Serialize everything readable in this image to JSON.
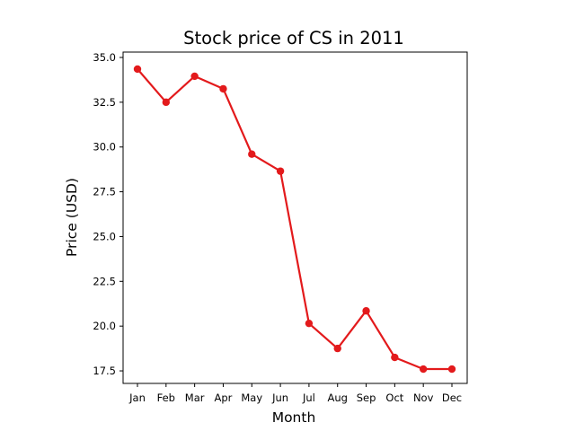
{
  "chart_data": {
    "type": "line",
    "title": "Stock price of CS in 2011",
    "xlabel": "Month",
    "ylabel": "Price (USD)",
    "categories": [
      "Jan",
      "Feb",
      "Mar",
      "Apr",
      "May",
      "Jun",
      "Jul",
      "Aug",
      "Sep",
      "Oct",
      "Nov",
      "Dec"
    ],
    "series": [
      {
        "values": [
          34.35,
          32.5,
          33.95,
          33.25,
          29.6,
          28.65,
          20.15,
          18.75,
          20.85,
          18.25,
          17.6,
          17.6
        ]
      }
    ],
    "ylim": [
      16.8,
      35.3
    ],
    "yticks": [
      "17.5",
      "20.0",
      "22.5",
      "25.0",
      "27.5",
      "30.0",
      "32.5",
      "35.0"
    ],
    "grid": false,
    "colors": {
      "line": "#e31a1c",
      "marker": "#e31a1c",
      "axis": "#000000"
    }
  }
}
